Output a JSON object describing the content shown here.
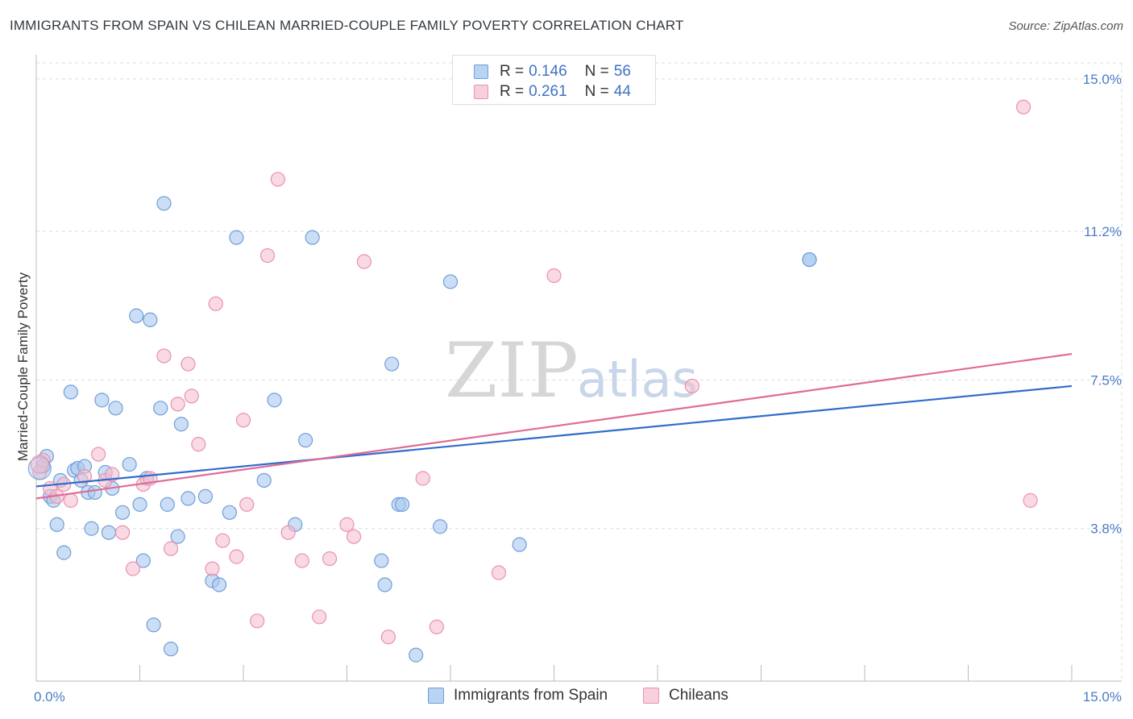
{
  "title": "IMMIGRANTS FROM SPAIN VS CHILEAN MARRIED-COUPLE FAMILY POVERTY CORRELATION CHART",
  "source": "Source: ZipAtlas.com",
  "watermark": {
    "zip": "ZIP",
    "atlas": "atlas"
  },
  "legend": {
    "rows": [
      {
        "r_label": "R =",
        "r_value": "0.146",
        "n_label": "N =",
        "n_value": "56"
      },
      {
        "r_label": "R =",
        "r_value": "0.261",
        "n_label": "N =",
        "n_value": "44"
      }
    ]
  },
  "chart_data": {
    "type": "scatter",
    "title": "IMMIGRANTS FROM SPAIN VS CHILEAN MARRIED-COUPLE FAMILY POVERTY CORRELATION CHART",
    "xlabel": "",
    "ylabel": "Married-Couple Family Poverty",
    "xlim": [
      0,
      15
    ],
    "ylim": [
      0,
      15.4
    ],
    "x_tick_labels": [
      "0.0%",
      "15.0%"
    ],
    "y_ticks": [
      3.8,
      7.5,
      11.2,
      15.0
    ],
    "y_tick_labels": [
      "3.8%",
      "7.5%",
      "11.2%",
      "15.0%"
    ],
    "colors": {
      "spain_fill": "#a9c8ee",
      "spain_stroke": "#6f9fd8",
      "spain_line": "#2f6ccc",
      "chile_fill": "#f5bfd0",
      "chile_stroke": "#ea92ad",
      "chile_line": "#e06b97",
      "grid": "#dedede",
      "axis": "#bbbbbb"
    },
    "series": [
      {
        "name": "Immigrants from Spain",
        "r": 0.146,
        "n": 56,
        "trend": {
          "x": [
            0,
            15
          ],
          "y": [
            4.85,
            7.35
          ]
        },
        "points": [
          [
            0.1,
            5.35
          ],
          [
            0.15,
            5.6
          ],
          [
            0.2,
            4.6
          ],
          [
            0.25,
            4.5
          ],
          [
            0.3,
            3.9
          ],
          [
            0.35,
            5.0
          ],
          [
            0.4,
            3.2
          ],
          [
            0.5,
            7.2
          ],
          [
            0.55,
            5.25
          ],
          [
            0.6,
            5.3
          ],
          [
            0.65,
            5.0
          ],
          [
            0.7,
            5.35
          ],
          [
            0.75,
            4.7
          ],
          [
            0.8,
            3.8
          ],
          [
            0.85,
            4.7
          ],
          [
            0.95,
            7.0
          ],
          [
            1.0,
            5.2
          ],
          [
            1.05,
            3.7
          ],
          [
            1.1,
            4.8
          ],
          [
            1.15,
            6.8
          ],
          [
            1.25,
            4.2
          ],
          [
            1.35,
            5.4
          ],
          [
            1.45,
            9.1
          ],
          [
            1.5,
            4.4
          ],
          [
            1.55,
            3.0
          ],
          [
            1.6,
            5.05
          ],
          [
            1.65,
            9.0
          ],
          [
            1.7,
            1.4
          ],
          [
            1.8,
            6.8
          ],
          [
            1.85,
            11.9
          ],
          [
            1.9,
            4.4
          ],
          [
            1.95,
            0.8
          ],
          [
            2.05,
            3.6
          ],
          [
            2.1,
            6.4
          ],
          [
            2.2,
            4.55
          ],
          [
            2.45,
            4.6
          ],
          [
            2.55,
            2.5
          ],
          [
            2.65,
            2.4
          ],
          [
            2.8,
            4.2
          ],
          [
            2.9,
            11.05
          ],
          [
            3.3,
            5.0
          ],
          [
            3.45,
            7.0
          ],
          [
            3.75,
            3.9
          ],
          [
            3.9,
            6.0
          ],
          [
            4.0,
            11.05
          ],
          [
            5.0,
            3.0
          ],
          [
            5.05,
            2.4
          ],
          [
            5.15,
            7.9
          ],
          [
            5.25,
            4.4
          ],
          [
            5.3,
            4.4
          ],
          [
            5.5,
            0.65
          ],
          [
            5.85,
            3.85
          ],
          [
            6.0,
            9.95
          ],
          [
            7.0,
            3.4
          ],
          [
            11.2,
            10.5
          ],
          [
            11.2,
            10.5
          ]
        ]
      },
      {
        "name": "Chileans",
        "r": 0.261,
        "n": 44,
        "trend": {
          "x": [
            0,
            15
          ],
          "y": [
            4.55,
            8.15
          ]
        },
        "points": [
          [
            0.05,
            5.2
          ],
          [
            0.1,
            5.5
          ],
          [
            0.2,
            4.8
          ],
          [
            0.3,
            4.6
          ],
          [
            0.4,
            4.9
          ],
          [
            0.5,
            4.5
          ],
          [
            0.7,
            5.1
          ],
          [
            0.9,
            5.65
          ],
          [
            1.0,
            5.0
          ],
          [
            1.1,
            5.15
          ],
          [
            1.25,
            3.7
          ],
          [
            1.4,
            2.8
          ],
          [
            1.55,
            4.9
          ],
          [
            1.65,
            5.05
          ],
          [
            1.85,
            8.1
          ],
          [
            1.95,
            3.3
          ],
          [
            2.05,
            6.9
          ],
          [
            2.2,
            7.9
          ],
          [
            2.25,
            7.1
          ],
          [
            2.35,
            5.9
          ],
          [
            2.55,
            2.8
          ],
          [
            2.6,
            9.4
          ],
          [
            2.7,
            3.5
          ],
          [
            2.9,
            3.1
          ],
          [
            3.0,
            6.5
          ],
          [
            3.05,
            4.4
          ],
          [
            3.2,
            1.5
          ],
          [
            3.35,
            10.6
          ],
          [
            3.5,
            12.5
          ],
          [
            3.65,
            3.7
          ],
          [
            3.85,
            3.0
          ],
          [
            4.1,
            1.6
          ],
          [
            4.25,
            3.05
          ],
          [
            4.5,
            3.9
          ],
          [
            4.6,
            3.6
          ],
          [
            4.75,
            10.45
          ],
          [
            5.1,
            1.1
          ],
          [
            5.6,
            5.05
          ],
          [
            5.8,
            1.35
          ],
          [
            6.7,
            2.7
          ],
          [
            7.5,
            10.1
          ],
          [
            9.5,
            7.35
          ],
          [
            14.3,
            14.3
          ],
          [
            14.4,
            4.5
          ]
        ]
      }
    ]
  },
  "bottom_legend": {
    "items": [
      "Immigrants from Spain",
      "Chileans"
    ]
  }
}
